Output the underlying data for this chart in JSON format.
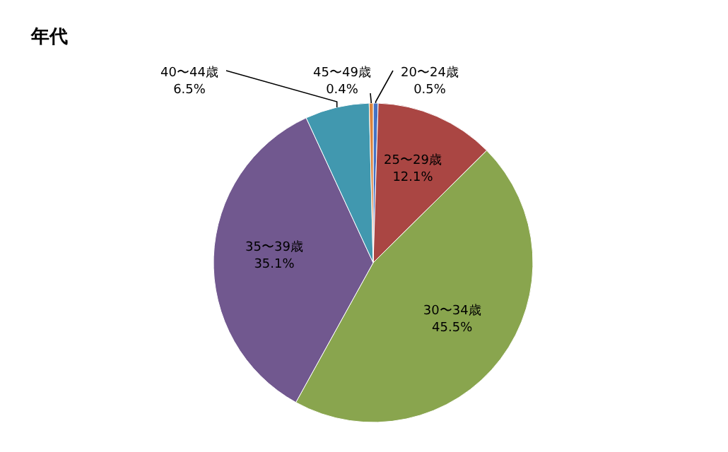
{
  "chart_data": {
    "type": "pie",
    "title": "年代",
    "categories": [
      "20〜24歳",
      "25〜29歳",
      "30〜34歳",
      "35〜39歳",
      "40〜44歳",
      "45〜49歳"
    ],
    "values": [
      0.5,
      12.1,
      45.5,
      35.1,
      6.5,
      0.4
    ],
    "value_labels": [
      "0.5%",
      "12.1%",
      "45.5%",
      "35.1%",
      "6.5%",
      "0.4%"
    ],
    "colors": [
      "#4472c4",
      "#aa4643",
      "#89a54e",
      "#71588f",
      "#4198af",
      "#db843d"
    ],
    "legend": false
  }
}
